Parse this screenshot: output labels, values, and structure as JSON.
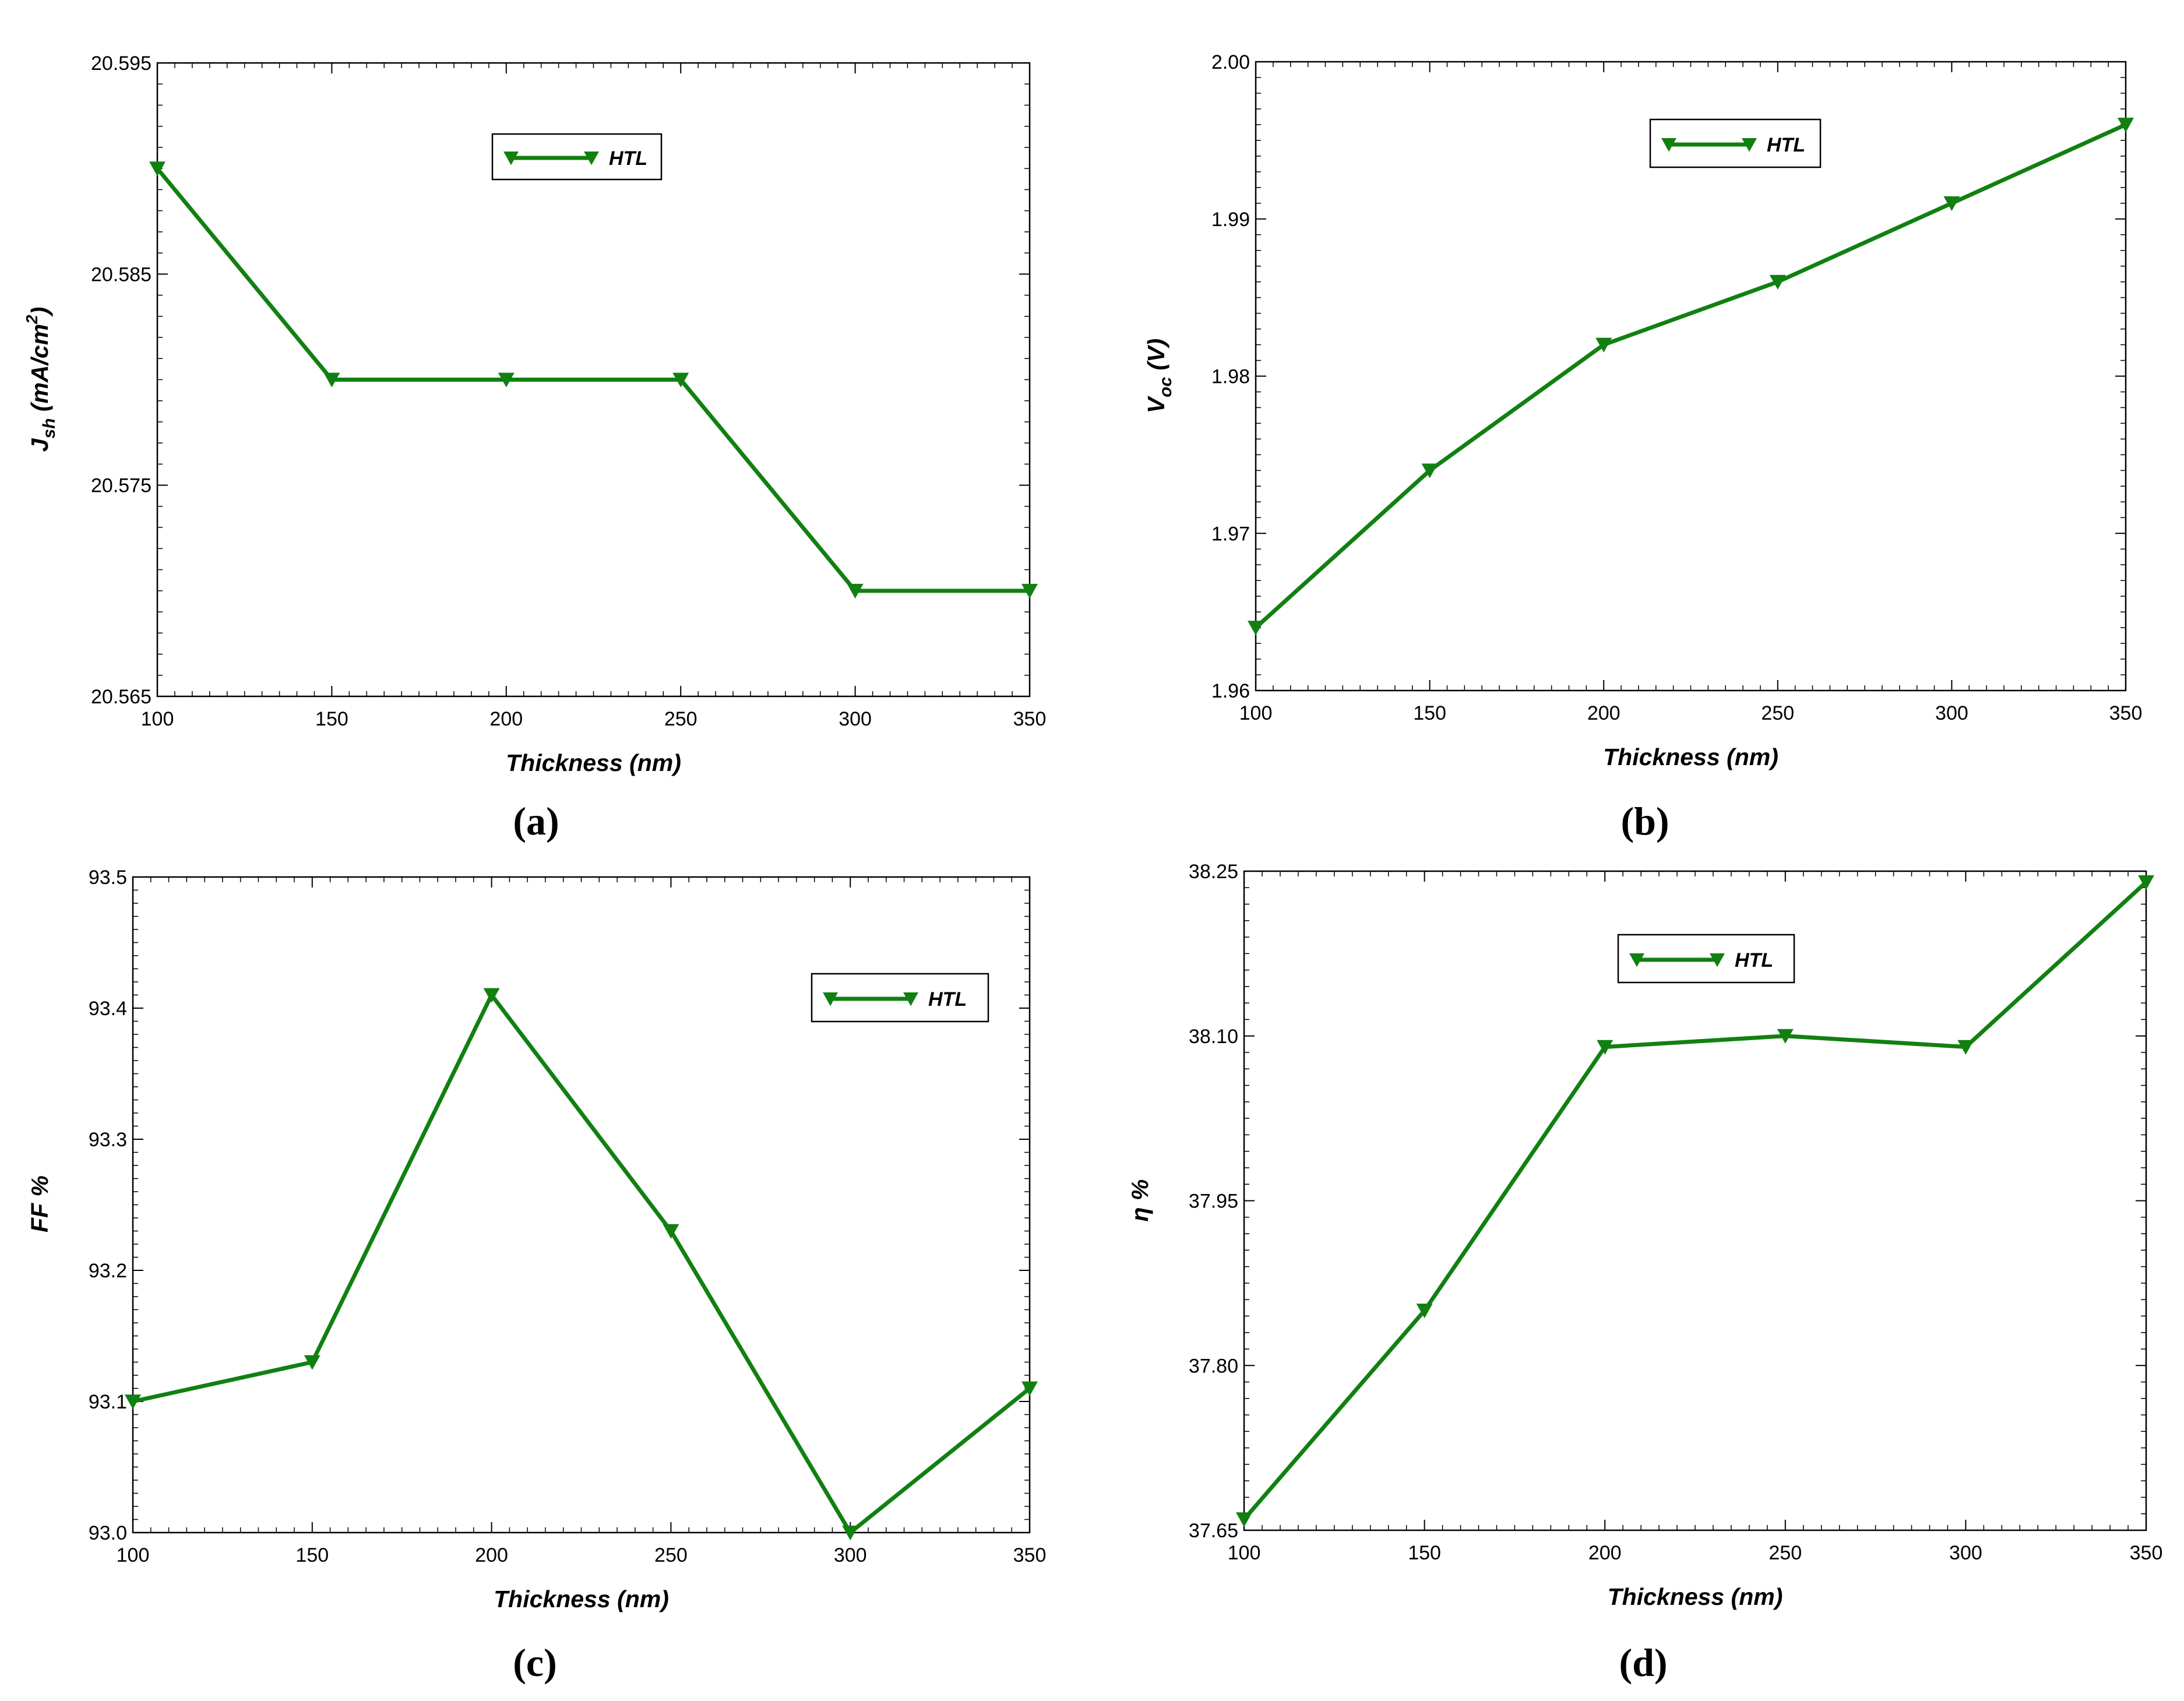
{
  "colors": {
    "line": "#118011",
    "frame": "#000000",
    "background": "#ffffff"
  },
  "chart_data": [
    {
      "type": "line",
      "panel_label": "(a)",
      "xlabel": "Thickness (nm)",
      "ylabel": {
        "base": "J",
        "subscript": "sh",
        "mid": " (mA/cm",
        "superscript": "2",
        "end": ")"
      },
      "xlim": [
        100,
        350
      ],
      "ylim": [
        20.565,
        20.595
      ],
      "xticks": [
        100,
        150,
        200,
        250,
        300,
        350
      ],
      "xtick_labels": [
        "100",
        "150",
        "200",
        "250",
        "300",
        "350"
      ],
      "yticks": [
        20.565,
        20.575,
        20.585,
        20.595
      ],
      "ytick_labels": [
        "20.565",
        "20.575",
        "20.585",
        "20.595"
      ],
      "legend": {
        "position": "top-center",
        "entries": [
          "HTL"
        ]
      },
      "series": [
        {
          "name": "HTL",
          "x": [
            100,
            150,
            200,
            250,
            300,
            350
          ],
          "y": [
            20.59,
            20.58,
            20.58,
            20.58,
            20.57,
            20.57
          ]
        }
      ]
    },
    {
      "type": "line",
      "panel_label": "(b)",
      "xlabel": "Thickness (nm)",
      "ylabel": {
        "base": "V",
        "subscript": "oc",
        "mid": " (V)",
        "superscript": "",
        "end": ""
      },
      "xlim": [
        100,
        350
      ],
      "ylim": [
        1.96,
        2.0
      ],
      "xticks": [
        100,
        150,
        200,
        250,
        300,
        350
      ],
      "xtick_labels": [
        "100",
        "150",
        "200",
        "250",
        "300",
        "350"
      ],
      "yticks": [
        1.96,
        1.97,
        1.98,
        1.99,
        2.0
      ],
      "ytick_labels": [
        "1.96",
        "1.97",
        "1.98",
        "1.99",
        "2.00"
      ],
      "legend": {
        "position": "top-center",
        "entries": [
          "HTL"
        ]
      },
      "series": [
        {
          "name": "HTL",
          "x": [
            100,
            150,
            200,
            250,
            300,
            350
          ],
          "y": [
            1.964,
            1.974,
            1.982,
            1.986,
            1.991,
            1.996
          ]
        }
      ]
    },
    {
      "type": "line",
      "panel_label": "(c)",
      "xlabel": "Thickness (nm)",
      "ylabel": {
        "base": "FF %",
        "subscript": "",
        "mid": "",
        "superscript": "",
        "end": ""
      },
      "xlim": [
        100,
        350
      ],
      "ylim": [
        93.0,
        93.5
      ],
      "xticks": [
        100,
        150,
        200,
        250,
        300,
        350
      ],
      "xtick_labels": [
        "100",
        "150",
        "200",
        "250",
        "300",
        "350"
      ],
      "yticks": [
        93.0,
        93.1,
        93.2,
        93.3,
        93.4,
        93.5
      ],
      "ytick_labels": [
        "93.0",
        "93.1",
        "93.2",
        "93.3",
        "93.4",
        "93.5"
      ],
      "legend": {
        "position": "top-right",
        "entries": [
          "HTL"
        ]
      },
      "series": [
        {
          "name": "HTL",
          "x": [
            100,
            150,
            200,
            250,
            300,
            350
          ],
          "y": [
            93.1,
            93.13,
            93.41,
            93.23,
            93.0,
            93.11
          ]
        }
      ]
    },
    {
      "type": "line",
      "panel_label": "(d)",
      "xlabel": "Thickness (nm)",
      "ylabel": {
        "base": "η %",
        "subscript": "",
        "mid": "",
        "superscript": "",
        "end": ""
      },
      "xlim": [
        100,
        350
      ],
      "ylim": [
        37.65,
        38.25
      ],
      "xticks": [
        100,
        150,
        200,
        250,
        300,
        350
      ],
      "xtick_labels": [
        "100",
        "150",
        "200",
        "250",
        "300",
        "350"
      ],
      "yticks": [
        37.65,
        37.8,
        37.95,
        38.1,
        38.25
      ],
      "ytick_labels": [
        "37.65",
        "37.80",
        "37.95",
        "38.10",
        "38.25"
      ],
      "legend": {
        "position": "top-center",
        "entries": [
          "HTL"
        ]
      },
      "series": [
        {
          "name": "HTL",
          "x": [
            100,
            150,
            200,
            250,
            300,
            350
          ],
          "y": [
            37.66,
            37.85,
            38.09,
            38.1,
            38.09,
            38.24
          ]
        }
      ]
    }
  ]
}
